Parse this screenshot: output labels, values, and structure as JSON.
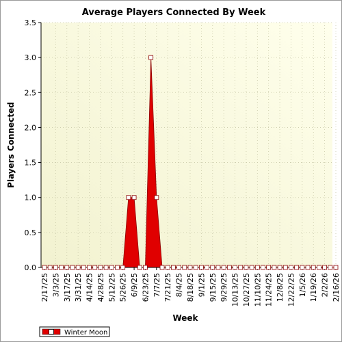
{
  "chart_data": {
    "type": "area",
    "title": "Average Players Connected By Week",
    "xlabel": "Week",
    "ylabel": "Players Connected",
    "ylim": [
      0,
      3.5
    ],
    "yticks": [
      "0.0",
      "0.5",
      "1.0",
      "1.5",
      "2.0",
      "2.5",
      "3.0",
      "3.5"
    ],
    "grid": true,
    "legend_position": "bottom-left",
    "x": [
      "2/17/25",
      "2/24/25",
      "3/3/25",
      "3/10/25",
      "3/17/25",
      "3/24/25",
      "3/31/25",
      "4/7/25",
      "4/14/25",
      "4/21/25",
      "4/28/25",
      "5/5/25",
      "5/12/25",
      "5/19/25",
      "5/26/25",
      "6/2/25",
      "6/9/25",
      "6/16/25",
      "6/23/25",
      "6/30/25",
      "7/7/25",
      "7/14/25",
      "7/21/25",
      "7/28/25",
      "8/4/25",
      "8/11/25",
      "8/18/25",
      "8/25/25",
      "9/1/25",
      "9/8/25",
      "9/15/25",
      "9/22/25",
      "9/29/25",
      "10/6/25",
      "10/13/25",
      "10/20/25",
      "10/27/25",
      "11/3/25",
      "11/10/25",
      "11/17/25",
      "11/24/25",
      "12/1/25",
      "12/8/25",
      "12/15/25",
      "12/22/25",
      "12/29/25",
      "1/5/26",
      "1/12/26",
      "1/19/26",
      "1/26/26",
      "2/2/26",
      "2/9/26",
      "2/16/26"
    ],
    "tick_labels": [
      "2/17/25",
      "3/3/25",
      "3/17/25",
      "3/31/25",
      "4/14/25",
      "4/28/25",
      "5/12/25",
      "5/26/25",
      "6/9/25",
      "6/23/25",
      "7/7/25",
      "7/21/25",
      "8/4/25",
      "8/18/25",
      "9/1/25",
      "9/15/25",
      "9/29/25",
      "10/13/25",
      "10/27/25",
      "11/10/25",
      "11/24/25",
      "12/8/25",
      "12/22/25",
      "1/5/26",
      "1/19/26",
      "2/2/26",
      "2/16/26"
    ],
    "series": [
      {
        "name": "Winter Moon",
        "color": "#e00000",
        "values": [
          0,
          0,
          0,
          0,
          0,
          0,
          0,
          0,
          0,
          0,
          0,
          0,
          0,
          0,
          0,
          1,
          1,
          0,
          0,
          3,
          1,
          0,
          0,
          0,
          0,
          0,
          0,
          0,
          0,
          0,
          0,
          0,
          0,
          0,
          0,
          0,
          0,
          0,
          0,
          0,
          0,
          0,
          0,
          0,
          0,
          0,
          0,
          0,
          0,
          0,
          0,
          0,
          0
        ]
      }
    ]
  }
}
